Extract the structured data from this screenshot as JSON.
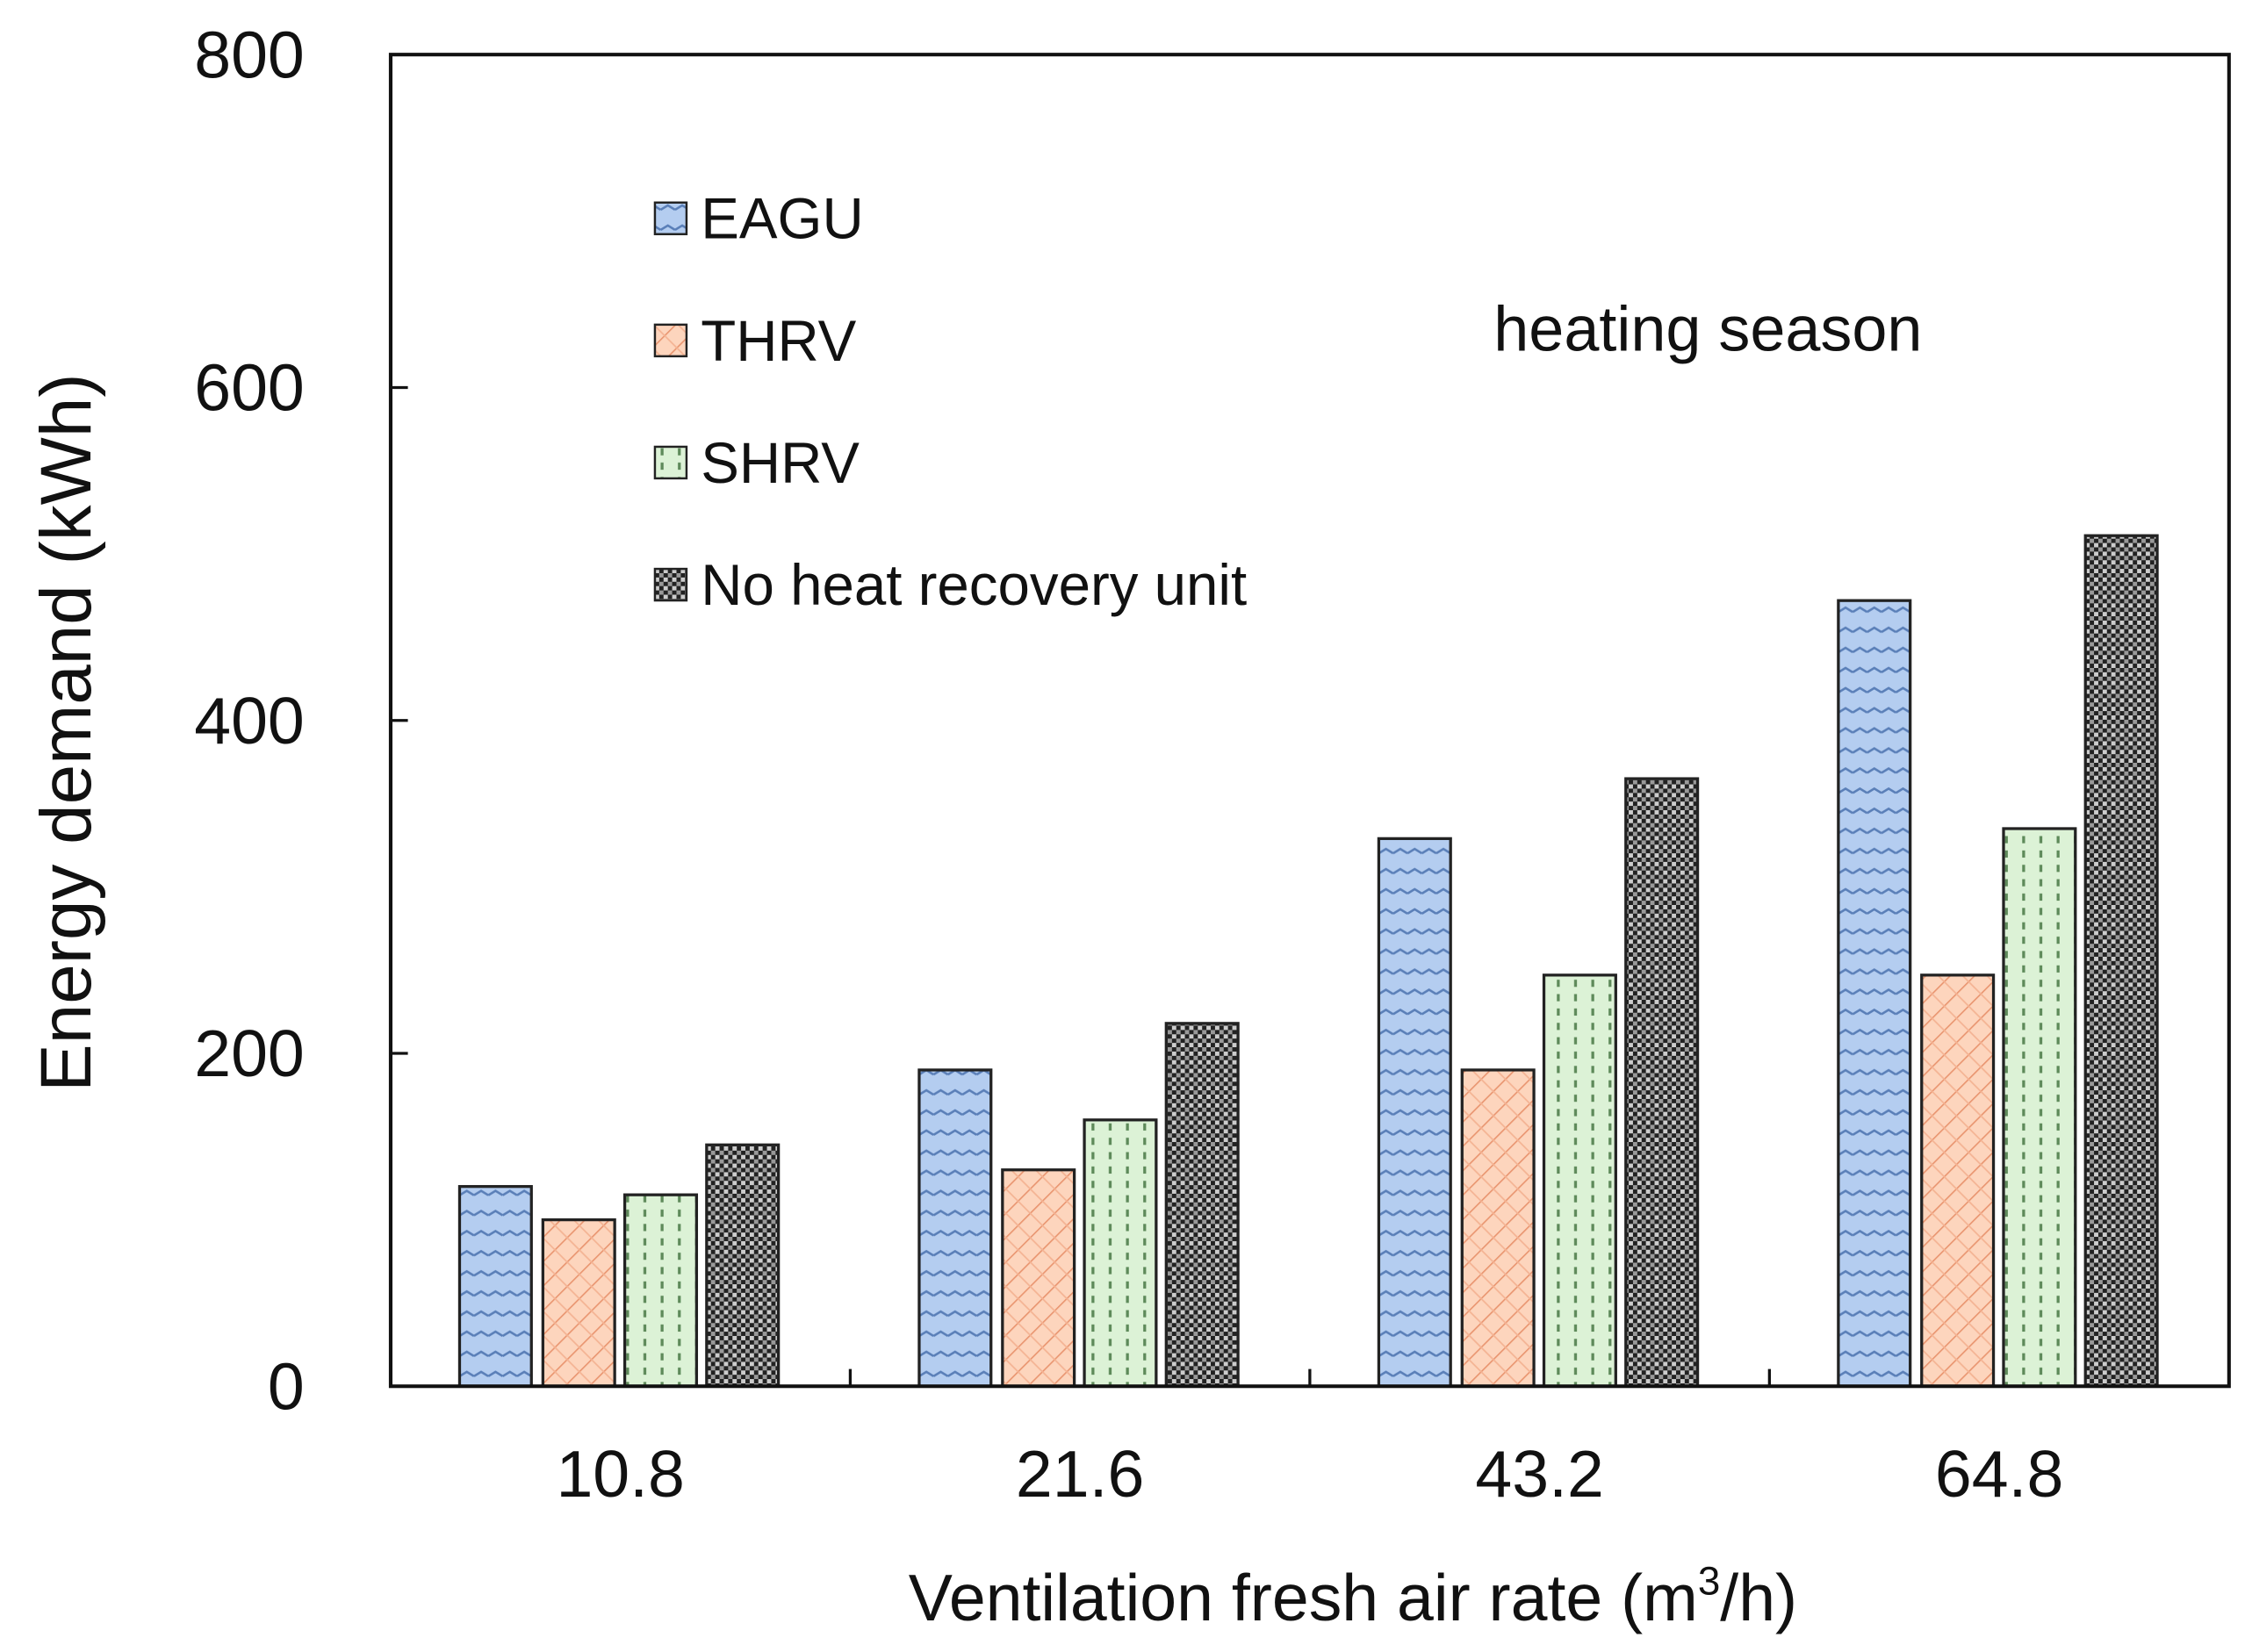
{
  "chart_data": {
    "type": "bar",
    "title": "",
    "annotation": "heating season",
    "xlabel": "Ventilation fresh air rate (m",
    "xlabel_sup": "3",
    "xlabel_end": "/h)",
    "ylabel": "Energy demand (kWh)",
    "ylim": [
      0,
      800
    ],
    "yticks": [
      "0",
      "200",
      "400",
      "600",
      "800"
    ],
    "categories": [
      "10.8",
      "21.6",
      "43.2",
      "64.8"
    ],
    "legend_position": "top-left",
    "series": [
      {
        "name": "EAGU",
        "color": "#a9c4ec",
        "values": [
          120,
          190,
          329,
          472
        ]
      },
      {
        "name": "THRV",
        "color": "#fbc7a8",
        "values": [
          100,
          130,
          190,
          247
        ]
      },
      {
        "name": "SHRV",
        "color": "#d6f0d0",
        "values": [
          115,
          160,
          247,
          335
        ]
      },
      {
        "name": "No heat recovery unit",
        "color": "#8a8a8a",
        "values": [
          145,
          218,
          365,
          511
        ]
      }
    ]
  }
}
